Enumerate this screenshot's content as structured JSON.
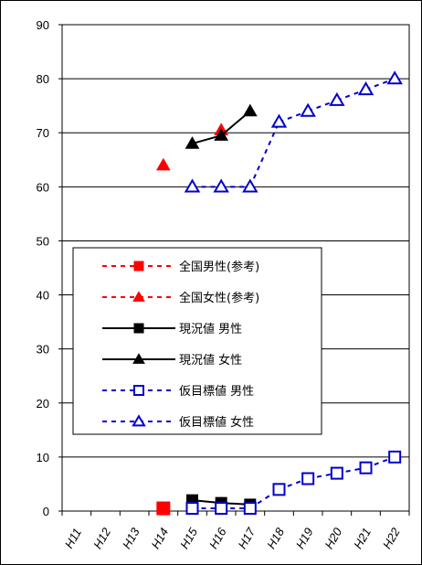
{
  "chart_data": {
    "type": "line",
    "title": "",
    "xlabel": "",
    "ylabel": "",
    "categories": [
      "H11",
      "H12",
      "H13",
      "H14",
      "H15",
      "H16",
      "H17",
      "H18",
      "H19",
      "H20",
      "H21",
      "H22"
    ],
    "ylim": [
      0,
      90
    ],
    "yticks": [
      0,
      10,
      20,
      30,
      40,
      50,
      60,
      70,
      80,
      90
    ],
    "grid": true,
    "legend_position": "left-middle",
    "series": [
      {
        "name": "全国男性(参考)",
        "color": "#ff0000",
        "line": "dotted",
        "marker": "filled-square",
        "marker_size": "large",
        "values": [
          null,
          null,
          null,
          0.5,
          null,
          null,
          null,
          null,
          null,
          null,
          null,
          null
        ]
      },
      {
        "name": "全国女性(参考)",
        "color": "#ff0000",
        "line": "dotted",
        "marker": "filled-triangle",
        "values": [
          null,
          null,
          null,
          64,
          null,
          70.5,
          null,
          null,
          null,
          null,
          null,
          null
        ]
      },
      {
        "name": "現況値 男性",
        "color": "#000000",
        "line": "solid",
        "marker": "filled-square",
        "values": [
          null,
          null,
          null,
          null,
          2,
          1.5,
          1.2,
          null,
          null,
          null,
          null,
          null
        ]
      },
      {
        "name": "現況値 女性",
        "color": "#000000",
        "line": "solid",
        "marker": "filled-triangle",
        "values": [
          null,
          null,
          null,
          null,
          68,
          69.5,
          74,
          null,
          null,
          null,
          null,
          null
        ]
      },
      {
        "name": "仮目標値 男性",
        "color": "#0000cc",
        "line": "dotted",
        "marker": "open-square",
        "values": [
          null,
          null,
          null,
          null,
          0.5,
          0.5,
          0.5,
          4,
          6,
          7,
          8,
          10
        ]
      },
      {
        "name": "仮目標値 女性",
        "color": "#0000cc",
        "line": "dotted",
        "marker": "open-triangle",
        "values": [
          null,
          null,
          null,
          null,
          60,
          60,
          60,
          72,
          74,
          76,
          78,
          80
        ]
      }
    ]
  }
}
